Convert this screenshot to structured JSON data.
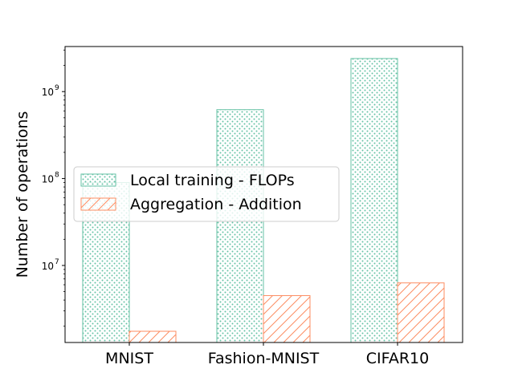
{
  "chart_data": {
    "type": "bar",
    "title": "",
    "xlabel": "",
    "ylabel": "Number of operations",
    "yscale": "log",
    "ylim": [
      1300000,
      3300000000
    ],
    "yticks": [
      {
        "value": 10000000,
        "base": "10",
        "exp": "7"
      },
      {
        "value": 100000000,
        "base": "10",
        "exp": "8"
      },
      {
        "value": 1000000000,
        "base": "10",
        "exp": "9"
      }
    ],
    "categories": [
      "MNIST",
      "Fashion-MNIST",
      "CIFAR10"
    ],
    "series": [
      {
        "name": "Local training - FLOPs",
        "values": [
          90000000,
          620000000,
          2400000000
        ],
        "color": "#66c2a5",
        "hatch": "dots"
      },
      {
        "name": "Aggregation - Addition",
        "values": [
          1750000,
          4500000,
          6300000
        ],
        "color": "#fc8d62",
        "hatch": "diagonal"
      }
    ],
    "legend": {
      "position": "center-left"
    },
    "grid": false
  }
}
